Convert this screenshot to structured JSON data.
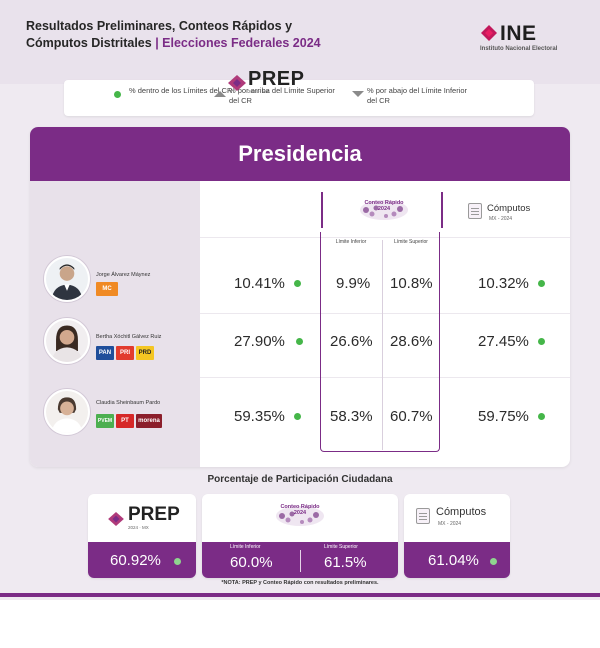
{
  "header": {
    "title_line1": "Resultados Preliminares, Conteos Rápidos y",
    "title_line2_plain": "Cómputos Distritales",
    "title_line2_accent": "| Elecciones Federales 2024",
    "logo_word": "INE",
    "logo_sub": "Instituto Nacional Electoral"
  },
  "legend": [
    {
      "icon": "green-dot-icon",
      "text": "% dentro de los Límites del CR"
    },
    {
      "icon": "triangle-up-icon",
      "text": "% por arriba del Límite Superior del CR"
    },
    {
      "icon": "triangle-down-icon",
      "text": "% por abajo del Límite Inferior del CR"
    }
  ],
  "table": {
    "heading": "Presidencia",
    "prep_word": "PREP",
    "prep_sub": "2024 · MX",
    "conteo_word": "Conteo Rápido 2024",
    "computos_word": "Cómputos",
    "computos_sub": "MX - 2024",
    "limit_lower": "Límite Inferior",
    "limit_upper": "Límite Superior",
    "rows": [
      {
        "name": "Jorge Álvarez Máynez",
        "prep": "10.41%",
        "lower": "9.9%",
        "upper": "10.8%",
        "computos": "10.32%"
      },
      {
        "name": "Bertha Xóchitl Gálvez Ruiz",
        "prep": "27.90%",
        "lower": "26.6%",
        "upper": "28.6%",
        "computos": "27.45%"
      },
      {
        "name": "Claudia Sheinbaum Pardo",
        "prep": "59.35%",
        "lower": "58.3%",
        "upper": "60.7%",
        "computos": "59.75%"
      }
    ],
    "parties": {
      "row1": [
        "MC"
      ],
      "row2": [
        "PAN",
        "PRI",
        "PRD"
      ],
      "row3": [
        "PVEM",
        "PT",
        "morena"
      ]
    }
  },
  "participation": {
    "title": "Porcentaje de Participación Ciudadana",
    "prep": "60.92%",
    "limit_lower_label": "Límite Inferior",
    "limit_upper_label": "Límite Superior",
    "lower": "60.0%",
    "upper": "61.5%",
    "computos": "61.04%"
  },
  "note": "*NOTA: PREP y Conteo Rápido con resultados preliminares.",
  "colors": {
    "accent": "#7b2c86",
    "ok": "#45b649",
    "background": "#efeaf1"
  }
}
